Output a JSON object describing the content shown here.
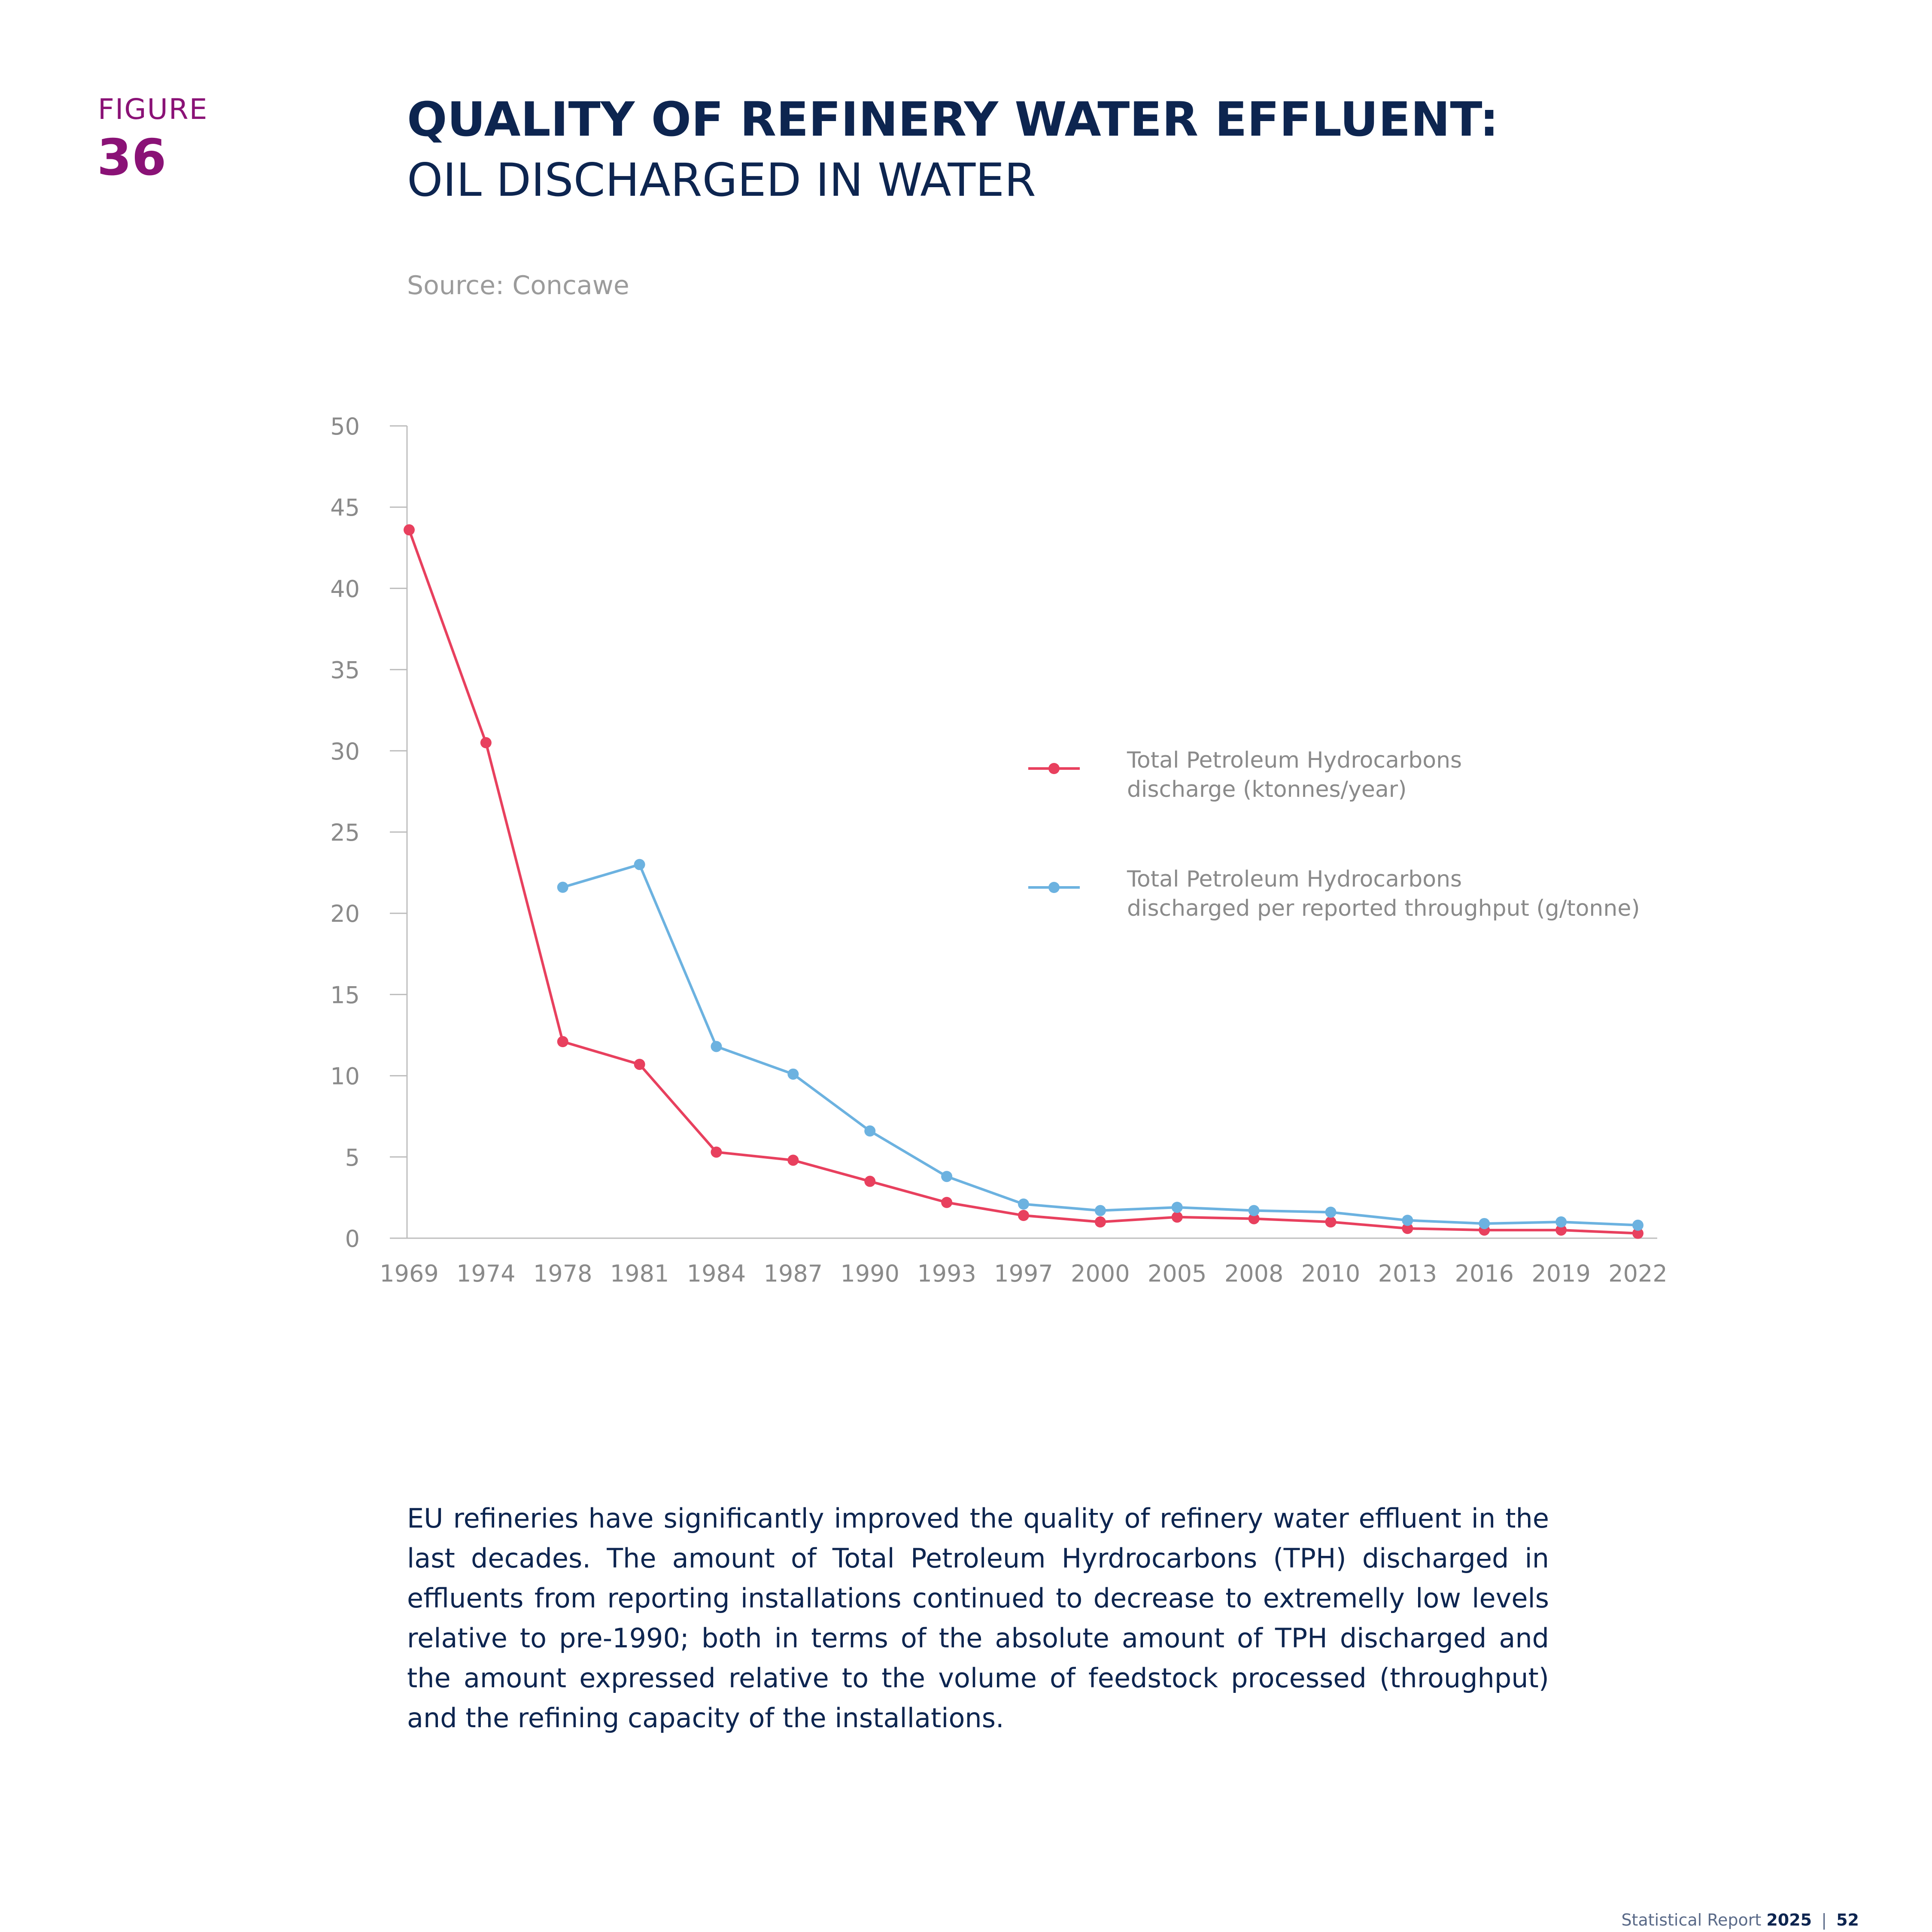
{
  "figure": {
    "label": "FIGURE",
    "number": "36"
  },
  "title": {
    "main": "QUALITY OF REFINERY WATER EFFLUENT:",
    "sub": "OIL DISCHARGED IN WATER"
  },
  "source": "Source: Concawe",
  "chart_data": {
    "type": "line",
    "title": "",
    "xlabel": "",
    "ylabel": "",
    "categories": [
      "1969",
      "1974",
      "1978",
      "1981",
      "1984",
      "1987",
      "1990",
      "1993",
      "1997",
      "2000",
      "2005",
      "2008",
      "2010",
      "2013",
      "2016",
      "2019",
      "2022"
    ],
    "ylim": [
      0,
      50
    ],
    "yticks": [
      "0",
      "5",
      "10",
      "15",
      "20",
      "25",
      "30",
      "35",
      "40",
      "45",
      "50"
    ],
    "grid": false,
    "legend_position": "right",
    "series": [
      {
        "name": "Total Petroleum Hydrocarbons discharge (ktonnes/year)",
        "legend_lines": [
          "Total Petroleum Hydrocarbons",
          "discharge (ktonnes/year)"
        ],
        "color": "#e8405e",
        "values": [
          43.6,
          30.5,
          12.1,
          10.7,
          5.3,
          4.8,
          3.5,
          2.2,
          1.4,
          1.0,
          1.3,
          1.2,
          1.0,
          0.6,
          0.5,
          0.5,
          0.3
        ]
      },
      {
        "name": "Total Petroleum Hydrocarbons discharged per reported throughput (g/tonne)",
        "legend_lines": [
          "Total Petroleum Hydrocarbons",
          "discharged per reported throughput (g/tonne)"
        ],
        "color": "#6cb2e0",
        "values": [
          null,
          null,
          21.6,
          23.0,
          11.8,
          10.1,
          6.6,
          3.8,
          2.1,
          1.7,
          1.9,
          1.7,
          1.6,
          1.1,
          0.9,
          1.0,
          0.8
        ]
      }
    ]
  },
  "body_text": "EU refineries have significantly improved the quality of refinery water effluent in the last decades. The amount of Total Petroleum Hyrdrocarbons (TPH) discharged in effluents from reporting installations continued to decrease to extremelly low levels relative to pre-1990; both in terms of the absolute amount of TPH discharged and the amount expressed relative to the volume of feedstock processed (throughput) and the refining capacity of the installations.",
  "footer": {
    "label": "Statistical Report",
    "year": "2025",
    "separator": "|",
    "page": "52"
  }
}
